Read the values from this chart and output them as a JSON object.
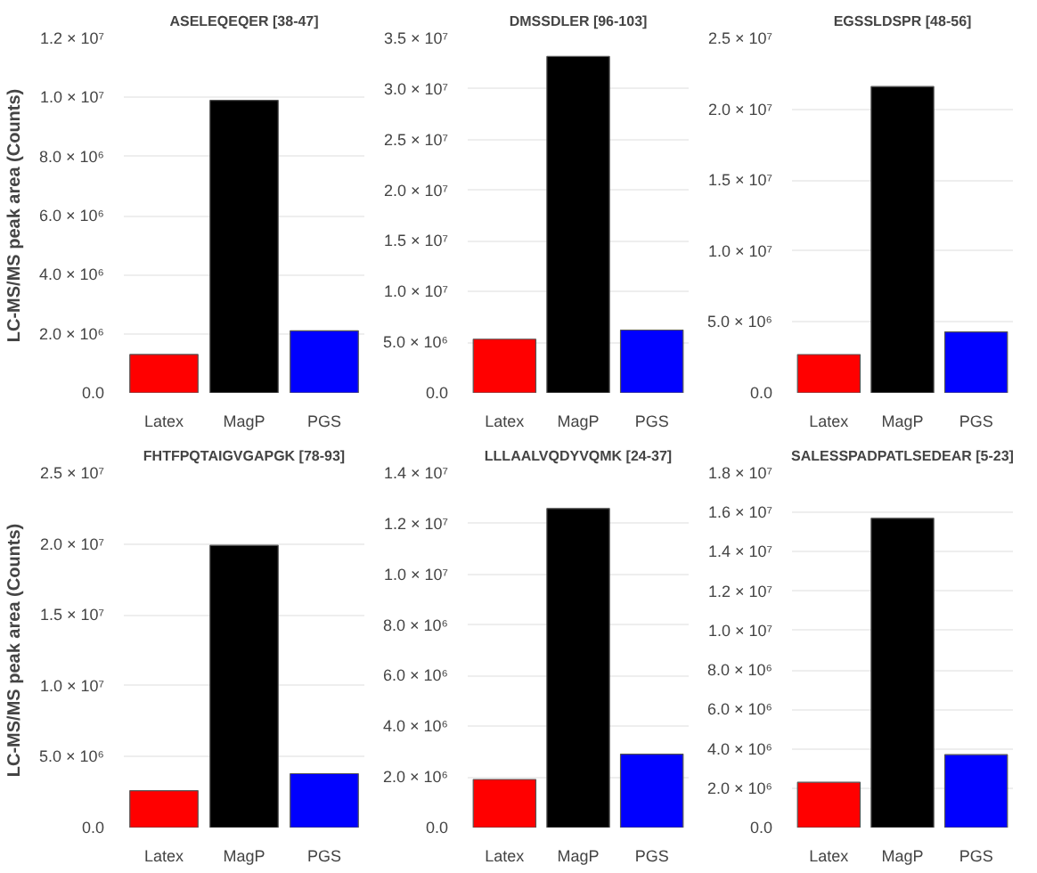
{
  "chart_data": [
    {
      "type": "bar",
      "title": "ASELEQEQER [38-47]",
      "ylabel": "LC-MS/MS peak area (Counts)",
      "categories": [
        "Latex",
        "MagP",
        "PGS"
      ],
      "values": [
        1300000,
        9900000,
        2100000
      ],
      "colors": [
        "#ff0000",
        "#000000",
        "#0000ff"
      ],
      "ylim": [
        0,
        12000000
      ],
      "yticks": [
        {
          "value": 0,
          "label": "0.0"
        },
        {
          "value": 2000000,
          "label": "2.0 × 10⁶"
        },
        {
          "value": 4000000,
          "label": "4.0 × 10⁶"
        },
        {
          "value": 6000000,
          "label": "6.0 × 10⁶"
        },
        {
          "value": 8000000,
          "label": "8.0 × 10⁶"
        },
        {
          "value": 10000000,
          "label": "1.0 × 10⁷"
        },
        {
          "value": 12000000,
          "label": "1.2 × 10⁷"
        }
      ],
      "grid": "y"
    },
    {
      "type": "bar",
      "title": "DMSSDLER [96-103]",
      "categories": [
        "Latex",
        "MagP",
        "PGS"
      ],
      "values": [
        5300000,
        33200000,
        6200000
      ],
      "colors": [
        "#ff0000",
        "#000000",
        "#0000ff"
      ],
      "ylim": [
        0,
        35000000
      ],
      "yticks": [
        {
          "value": 0,
          "label": "0.0"
        },
        {
          "value": 5000000,
          "label": "5.0 × 10⁶"
        },
        {
          "value": 10000000,
          "label": "1.0 × 10⁷"
        },
        {
          "value": 15000000,
          "label": "1.5 × 10⁷"
        },
        {
          "value": 20000000,
          "label": "2.0 × 10⁷"
        },
        {
          "value": 25000000,
          "label": "2.5 × 10⁷"
        },
        {
          "value": 30000000,
          "label": "3.0 × 10⁷"
        },
        {
          "value": 35000000,
          "label": "3.5 × 10⁷"
        }
      ],
      "grid": "y"
    },
    {
      "type": "bar",
      "title": "EGSSLDSPR [48-56]",
      "categories": [
        "Latex",
        "MagP",
        "PGS"
      ],
      "values": [
        2700000,
        21600000,
        4300000
      ],
      "colors": [
        "#ff0000",
        "#000000",
        "#0000ff"
      ],
      "ylim": [
        0,
        25000000
      ],
      "yticks": [
        {
          "value": 0,
          "label": "0.0"
        },
        {
          "value": 5000000,
          "label": "5.0 × 10⁶"
        },
        {
          "value": 10000000,
          "label": "1.0 × 10⁷"
        },
        {
          "value": 15000000,
          "label": "1.5 × 10⁷"
        },
        {
          "value": 20000000,
          "label": "2.0 × 10⁷"
        },
        {
          "value": 25000000,
          "label": "2.5 × 10⁷"
        }
      ],
      "grid": "y"
    },
    {
      "type": "bar",
      "title": "FHTFPQTAIGVGAPGK [78-93]",
      "ylabel": "LC-MS/MS peak area (Counts)",
      "categories": [
        "Latex",
        "MagP",
        "PGS"
      ],
      "values": [
        2600000,
        19900000,
        3800000
      ],
      "colors": [
        "#ff0000",
        "#000000",
        "#0000ff"
      ],
      "ylim": [
        0,
        25000000
      ],
      "yticks": [
        {
          "value": 0,
          "label": "0.0"
        },
        {
          "value": 5000000,
          "label": "5.0 × 10⁶"
        },
        {
          "value": 10000000,
          "label": "1.0 × 10⁷"
        },
        {
          "value": 15000000,
          "label": "1.5 × 10⁷"
        },
        {
          "value": 20000000,
          "label": "2.0 × 10⁷"
        },
        {
          "value": 25000000,
          "label": "2.5 × 10⁷"
        }
      ],
      "grid": "y"
    },
    {
      "type": "bar",
      "title": "LLLAALVQDYVQMK [24-37]",
      "categories": [
        "Latex",
        "MagP",
        "PGS"
      ],
      "values": [
        1900000,
        12600000,
        2900000
      ],
      "colors": [
        "#ff0000",
        "#000000",
        "#0000ff"
      ],
      "ylim": [
        0,
        14000000
      ],
      "yticks": [
        {
          "value": 0,
          "label": "0.0"
        },
        {
          "value": 2000000,
          "label": "2.0 × 10⁶"
        },
        {
          "value": 4000000,
          "label": "4.0 × 10⁶"
        },
        {
          "value": 6000000,
          "label": "6.0 × 10⁶"
        },
        {
          "value": 8000000,
          "label": "8.0 × 10⁶"
        },
        {
          "value": 10000000,
          "label": "1.0 × 10⁷"
        },
        {
          "value": 12000000,
          "label": "1.2 × 10⁷"
        },
        {
          "value": 14000000,
          "label": "1.4 × 10⁷"
        }
      ],
      "grid": "y"
    },
    {
      "type": "bar",
      "title": "SALESSPADPATLSEDEAR [5-23]",
      "categories": [
        "Latex",
        "MagP",
        "PGS"
      ],
      "values": [
        2300000,
        15700000,
        3700000
      ],
      "colors": [
        "#ff0000",
        "#000000",
        "#0000ff"
      ],
      "ylim": [
        0,
        18000000
      ],
      "yticks": [
        {
          "value": 0,
          "label": "0.0"
        },
        {
          "value": 2000000,
          "label": "2.0 × 10⁶"
        },
        {
          "value": 4000000,
          "label": "4.0 × 10⁶"
        },
        {
          "value": 6000000,
          "label": "6.0 × 10⁶"
        },
        {
          "value": 8000000,
          "label": "8.0 × 10⁶"
        },
        {
          "value": 10000000,
          "label": "1.0 × 10⁷"
        },
        {
          "value": 12000000,
          "label": "1.2 × 10⁷"
        },
        {
          "value": 14000000,
          "label": "1.4 × 10⁷"
        },
        {
          "value": 16000000,
          "label": "1.6 × 10⁷"
        },
        {
          "value": 18000000,
          "label": "1.8 × 10⁷"
        }
      ],
      "grid": "y"
    }
  ]
}
